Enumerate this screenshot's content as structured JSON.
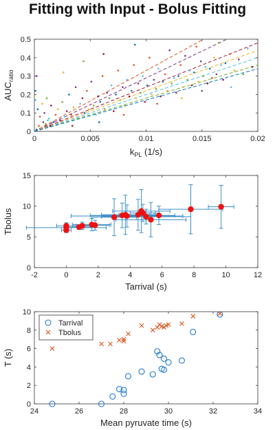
{
  "title": "Fitting with Input - Bolus Fitting",
  "chart_data": [
    {
      "type": "scatter",
      "xlabel": "k",
      "xlabel_sub": "PL",
      "xlabel_unit": " (1/s)",
      "ylabel": "AUC",
      "ylabel_sub": "ratio",
      "xlim": [
        0,
        0.02
      ],
      "ylim": [
        0,
        0.5
      ],
      "xticks": [
        0,
        0.005,
        0.01,
        0.015,
        0.02
      ],
      "xtick_labels": [
        "0",
        "0.005",
        "0.01",
        "0.015",
        "0.02"
      ],
      "yticks": [
        0,
        0.1,
        0.2,
        0.3,
        0.4,
        0.5
      ],
      "ytick_labels": [
        "0",
        "0.1",
        "0.2",
        "0.3",
        "0.4",
        "0.5"
      ],
      "series_colors": [
        "#0072bd",
        "#d95319",
        "#edb120",
        "#7e2f8e",
        "#77ac30",
        "#4dbeee",
        "#a2142f"
      ],
      "fit_lines": [
        {
          "color": "#d95319",
          "slope": 33
        },
        {
          "color": "#7e2f8e",
          "slope": 29
        },
        {
          "color": "#a2142f",
          "slope": 24
        },
        {
          "color": "#edb120",
          "slope": 22
        },
        {
          "color": "#4dbeee",
          "slope": 20
        },
        {
          "color": "#77ac30",
          "slope": 18
        },
        {
          "color": "#0072bd",
          "slope": 17
        }
      ],
      "points": [
        [
          0.0002,
          0.01,
          0
        ],
        [
          0.0004,
          0.03,
          1
        ],
        [
          0.0006,
          0.02,
          2
        ],
        [
          0.0008,
          0.05,
          3
        ],
        [
          0.001,
          0.04,
          4
        ],
        [
          0.0012,
          0.06,
          5
        ],
        [
          0.0014,
          0.03,
          6
        ],
        [
          0.0003,
          0.12,
          0
        ],
        [
          0.0005,
          0.08,
          1
        ],
        [
          0.0007,
          0.15,
          2
        ],
        [
          0.0009,
          0.1,
          3
        ],
        [
          0.0011,
          0.18,
          4
        ],
        [
          0.0013,
          0.07,
          5
        ],
        [
          0.0015,
          0.14,
          6
        ],
        [
          0.0017,
          0.05,
          0
        ],
        [
          0.0019,
          0.09,
          1
        ],
        [
          0.0021,
          0.12,
          2
        ],
        [
          0.0023,
          0.06,
          3
        ],
        [
          0.0025,
          0.16,
          4
        ],
        [
          0.0027,
          0.08,
          5
        ],
        [
          0.0029,
          0.11,
          6
        ],
        [
          0.0031,
          0.2,
          0
        ],
        [
          0.0033,
          0.09,
          1
        ],
        [
          0.0035,
          0.13,
          2
        ],
        [
          0.0037,
          0.24,
          3
        ],
        [
          0.0039,
          0.07,
          4
        ],
        [
          0.0041,
          0.15,
          5
        ],
        [
          0.0043,
          0.18,
          6
        ],
        [
          0.0045,
          0.1,
          0
        ],
        [
          0.0047,
          0.22,
          1
        ],
        [
          0.0049,
          0.12,
          2
        ],
        [
          0.0051,
          0.27,
          3
        ],
        [
          0.0053,
          0.14,
          4
        ],
        [
          0.0055,
          0.09,
          5
        ],
        [
          0.0057,
          0.19,
          6
        ],
        [
          0.0059,
          0.16,
          0
        ],
        [
          0.0061,
          0.3,
          1
        ],
        [
          0.0063,
          0.12,
          2
        ],
        [
          0.0065,
          0.21,
          3
        ],
        [
          0.0067,
          0.18,
          4
        ],
        [
          0.0069,
          0.25,
          5
        ],
        [
          0.0071,
          0.11,
          6
        ],
        [
          0.0073,
          0.2,
          0
        ],
        [
          0.0075,
          0.33,
          1
        ],
        [
          0.0077,
          0.17,
          2
        ],
        [
          0.0079,
          0.24,
          3
        ],
        [
          0.0081,
          0.14,
          4
        ],
        [
          0.0083,
          0.28,
          5
        ],
        [
          0.0085,
          0.19,
          6
        ],
        [
          0.0087,
          0.22,
          0
        ],
        [
          0.0089,
          0.36,
          1
        ],
        [
          0.0091,
          0.18,
          2
        ],
        [
          0.0093,
          0.26,
          3
        ],
        [
          0.0095,
          0.21,
          4
        ],
        [
          0.0097,
          0.3,
          5
        ],
        [
          0.0099,
          0.16,
          6
        ],
        [
          0.0101,
          0.25,
          0
        ],
        [
          0.0103,
          0.4,
          1
        ],
        [
          0.0105,
          0.2,
          2
        ],
        [
          0.0107,
          0.28,
          3
        ],
        [
          0.0109,
          0.23,
          4
        ],
        [
          0.0111,
          0.34,
          5
        ],
        [
          0.0113,
          0.19,
          6
        ],
        [
          0.0115,
          0.27,
          0
        ],
        [
          0.0117,
          0.31,
          1
        ],
        [
          0.0119,
          0.22,
          2
        ],
        [
          0.0121,
          0.44,
          3
        ],
        [
          0.0123,
          0.26,
          4
        ],
        [
          0.0125,
          0.29,
          5
        ],
        [
          0.0127,
          0.21,
          6
        ],
        [
          0.0129,
          0.3,
          0
        ],
        [
          0.0131,
          0.36,
          1
        ],
        [
          0.0133,
          0.24,
          2
        ],
        [
          0.0135,
          0.41,
          3
        ],
        [
          0.0137,
          0.28,
          4
        ],
        [
          0.0139,
          0.33,
          5
        ],
        [
          0.0141,
          0.25,
          6
        ],
        [
          0.0143,
          0.32,
          0
        ],
        [
          0.0145,
          0.46,
          1
        ],
        [
          0.0147,
          0.27,
          2
        ],
        [
          0.0149,
          0.38,
          3
        ],
        [
          0.0151,
          0.3,
          4
        ],
        [
          0.0153,
          0.35,
          5
        ],
        [
          0.0155,
          0.26,
          6
        ],
        [
          0.0157,
          0.34,
          0
        ],
        [
          0.0159,
          0.29,
          1
        ],
        [
          0.0161,
          0.4,
          2
        ],
        [
          0.0163,
          0.31,
          3
        ],
        [
          0.0165,
          0.48,
          4
        ],
        [
          0.0167,
          0.36,
          5
        ],
        [
          0.0169,
          0.28,
          6
        ],
        [
          0.0171,
          0.37,
          0
        ],
        [
          0.0175,
          0.42,
          1
        ],
        [
          0.0179,
          0.33,
          2
        ],
        [
          0.0183,
          0.39,
          3
        ],
        [
          0.0187,
          0.31,
          4
        ],
        [
          0.0191,
          0.45,
          5
        ],
        [
          0.0195,
          0.35,
          6
        ],
        [
          0.0001,
          0.22,
          0
        ],
        [
          0.0002,
          0.3,
          3
        ],
        [
          0.0001,
          0.17,
          5
        ],
        [
          0.0026,
          0.32,
          2
        ],
        [
          0.0044,
          0.38,
          4
        ],
        [
          0.0062,
          0.42,
          6
        ],
        [
          0.009,
          0.47,
          0
        ],
        [
          0.011,
          0.15,
          1
        ],
        [
          0.0132,
          0.18,
          2
        ],
        [
          0.015,
          0.22,
          3
        ],
        [
          0.0176,
          0.24,
          5
        ],
        [
          0.0034,
          0.03,
          6
        ],
        [
          0.0058,
          0.05,
          0
        ],
        [
          0.008,
          0.09,
          1
        ]
      ]
    },
    {
      "type": "scatter",
      "xlabel": "Tarrival (s)",
      "ylabel": "Tbolus",
      "xlim": [
        -2,
        12
      ],
      "ylim": [
        0,
        15
      ],
      "xticks": [
        -2,
        0,
        2,
        4,
        6,
        8,
        10,
        12
      ],
      "xtick_labels": [
        "-2",
        "0",
        "2",
        "4",
        "6",
        "8",
        "10",
        "12"
      ],
      "yticks": [
        0,
        5,
        10,
        15
      ],
      "ytick_labels": [
        "0",
        "5",
        "10",
        "15"
      ],
      "point_color": "#ee1111",
      "error_color": "#3a8fc8",
      "points": [
        {
          "x": 0.0,
          "y": 6.1,
          "xerr": 0.3,
          "yerr": 0.4
        },
        {
          "x": 0.0,
          "y": 6.5,
          "xerr": 2.5,
          "yerr": 0.5
        },
        {
          "x": 0.0,
          "y": 6.8,
          "xerr": 0.6,
          "yerr": 0.5
        },
        {
          "x": 0.8,
          "y": 6.6,
          "xerr": 0.8,
          "yerr": 0.4
        },
        {
          "x": 1.0,
          "y": 6.8,
          "xerr": 0.6,
          "yerr": 0.6
        },
        {
          "x": 1.6,
          "y": 7.0,
          "xerr": 1.2,
          "yerr": 1.0
        },
        {
          "x": 1.8,
          "y": 6.9,
          "xerr": 0.9,
          "yerr": 0.8
        },
        {
          "x": 3.0,
          "y": 8.2,
          "xerr": 1.4,
          "yerr": 3.0
        },
        {
          "x": 3.5,
          "y": 8.5,
          "xerr": 2.0,
          "yerr": 2.0
        },
        {
          "x": 3.7,
          "y": 8.6,
          "xerr": 1.5,
          "yerr": 3.2
        },
        {
          "x": 3.8,
          "y": 8.4,
          "xerr": 3.5,
          "yerr": 1.8
        },
        {
          "x": 4.5,
          "y": 8.6,
          "xerr": 1.2,
          "yerr": 2.5
        },
        {
          "x": 4.7,
          "y": 9.2,
          "xerr": 1.8,
          "yerr": 3.5
        },
        {
          "x": 4.8,
          "y": 8.9,
          "xerr": 0.8,
          "yerr": 1.4
        },
        {
          "x": 5.0,
          "y": 8.3,
          "xerr": 2.8,
          "yerr": 1.2
        },
        {
          "x": 5.3,
          "y": 7.8,
          "xerr": 2.2,
          "yerr": 2.8
        },
        {
          "x": 5.8,
          "y": 8.5,
          "xerr": 1.0,
          "yerr": 1.5
        },
        {
          "x": 7.8,
          "y": 9.5,
          "xerr": 2.0,
          "yerr": 4.0
        },
        {
          "x": 9.7,
          "y": 9.9,
          "xerr": 0.8,
          "yerr": 3.5
        }
      ]
    },
    {
      "type": "scatter",
      "xlabel": "Mean pyruvate time (s)",
      "ylabel": "T (s)",
      "xlim": [
        24,
        34
      ],
      "ylim": [
        0,
        10
      ],
      "xticks": [
        24,
        26,
        28,
        30,
        32,
        34
      ],
      "xtick_labels": [
        "24",
        "26",
        "28",
        "30",
        "32",
        "34"
      ],
      "yticks": [
        0,
        2,
        4,
        6,
        8,
        10
      ],
      "ytick_labels": [
        "0",
        "2",
        "4",
        "6",
        "8",
        "10"
      ],
      "legend_position": "top-left",
      "series": [
        {
          "name": "Tarrival",
          "marker": "circle",
          "color": "#1f77d0",
          "points": [
            [
              24.8,
              0.0
            ],
            [
              27.0,
              0.0
            ],
            [
              27.5,
              0.8
            ],
            [
              27.8,
              1.6
            ],
            [
              28.0,
              1.5
            ],
            [
              28.0,
              1.1
            ],
            [
              28.2,
              3.0
            ],
            [
              28.8,
              3.5
            ],
            [
              29.3,
              3.2
            ],
            [
              29.5,
              5.7
            ],
            [
              29.6,
              5.3
            ],
            [
              29.7,
              3.8
            ],
            [
              29.8,
              3.7
            ],
            [
              29.8,
              4.9
            ],
            [
              30.0,
              4.5
            ],
            [
              30.6,
              4.7
            ],
            [
              31.1,
              7.8
            ],
            [
              32.3,
              9.7
            ]
          ]
        },
        {
          "name": "Tbolus",
          "marker": "x",
          "color": "#d95319",
          "points": [
            [
              24.8,
              6.0
            ],
            [
              27.0,
              6.5
            ],
            [
              27.4,
              6.5
            ],
            [
              27.8,
              6.9
            ],
            [
              28.0,
              6.8
            ],
            [
              28.0,
              7.0
            ],
            [
              28.2,
              7.6
            ],
            [
              28.8,
              8.5
            ],
            [
              29.3,
              8.0
            ],
            [
              29.5,
              8.3
            ],
            [
              29.6,
              8.6
            ],
            [
              29.7,
              8.4
            ],
            [
              29.8,
              8.3
            ],
            [
              29.9,
              8.5
            ],
            [
              30.0,
              8.6
            ],
            [
              30.6,
              8.7
            ],
            [
              31.1,
              9.5
            ],
            [
              32.3,
              9.8
            ]
          ]
        }
      ]
    }
  ]
}
